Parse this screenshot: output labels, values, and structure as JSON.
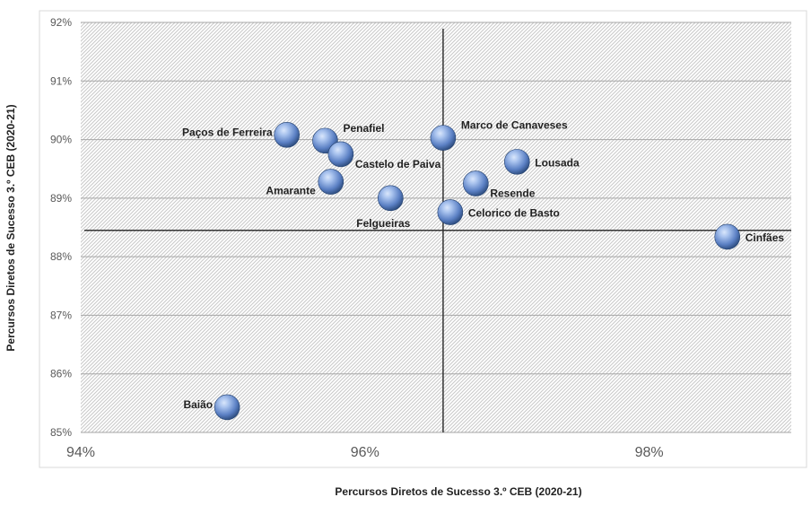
{
  "chart_data": {
    "type": "scatter",
    "xlabel": "Percursos Diretos de Sucesso 3.º CEB (2020-21)",
    "ylabel": "Percursos Diretos de Sucesso 3.º CEB (2020-21)",
    "xlim": [
      0.94,
      0.99
    ],
    "ylim": [
      0.85,
      0.92
    ],
    "x_ticks": [
      {
        "value": 0.94,
        "label": "94%"
      },
      {
        "value": 0.96,
        "label": "96%"
      },
      {
        "value": 0.98,
        "label": "98%"
      }
    ],
    "y_ticks": [
      {
        "value": 0.85,
        "label": "85%"
      },
      {
        "value": 0.86,
        "label": "86%"
      },
      {
        "value": 0.87,
        "label": "87%"
      },
      {
        "value": 0.88,
        "label": "88%"
      },
      {
        "value": 0.89,
        "label": "89%"
      },
      {
        "value": 0.9,
        "label": "90%"
      },
      {
        "value": 0.91,
        "label": "91%"
      },
      {
        "value": 0.92,
        "label": "92%"
      }
    ],
    "reference_lines": {
      "x": 0.9655,
      "y": 0.8845
    },
    "grid": "horizontal",
    "points": [
      {
        "label": "Paços de Ferreira",
        "x": 0.9545,
        "y": 0.9008,
        "label_pos": "left"
      },
      {
        "label": "Penafiel",
        "x": 0.9572,
        "y": 0.8998,
        "label_pos": "above-right"
      },
      {
        "label": "Castelo de Paiva",
        "x": 0.9583,
        "y": 0.8975,
        "label_pos": "below-right"
      },
      {
        "label": "Amarante",
        "x": 0.9576,
        "y": 0.8928,
        "label_pos": "below-left"
      },
      {
        "label": "Marco de Canaveses",
        "x": 0.9655,
        "y": 0.9003,
        "label_pos": "above-right"
      },
      {
        "label": "Lousada",
        "x": 0.9707,
        "y": 0.8962,
        "label_pos": "right"
      },
      {
        "label": "Resende",
        "x": 0.9678,
        "y": 0.8925,
        "label_pos": "below-right"
      },
      {
        "label": "Felgueiras",
        "x": 0.9618,
        "y": 0.89,
        "label_pos": "below-left"
      },
      {
        "label": "Celorico de Basto",
        "x": 0.966,
        "y": 0.8876,
        "label_pos": "right"
      },
      {
        "label": "Cinfães",
        "x": 0.9855,
        "y": 0.8834,
        "label_pos": "right"
      },
      {
        "label": "Baião",
        "x": 0.9503,
        "y": 0.8543,
        "label_pos": "left"
      }
    ]
  },
  "colors": {
    "bubble_light": "#a9c3ee",
    "bubble_mid": "#5b80c4",
    "bubble_dark": "#23416f",
    "hatch": "#c9c9c9",
    "gridline": "#a6a6a6",
    "refline": "#333333",
    "tick_text": "#595959",
    "label_text": "#222222"
  }
}
